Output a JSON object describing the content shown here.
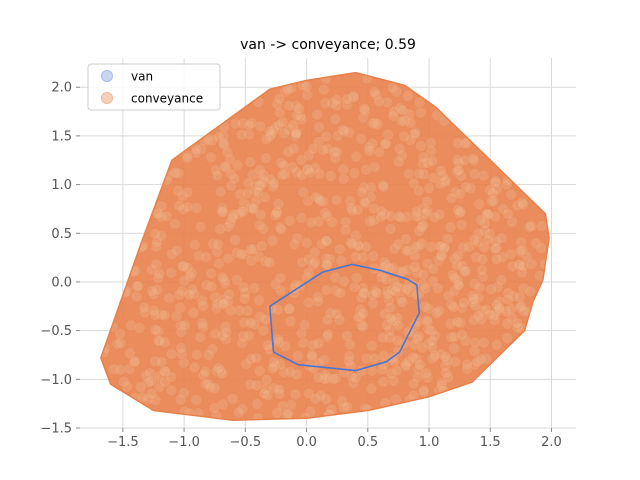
{
  "chart_data": {
    "type": "scatter",
    "title": "van -> conveyance; 0.59",
    "xlabel": "",
    "ylabel": "",
    "xlim": [
      -1.85,
      2.2
    ],
    "ylim": [
      -1.5,
      2.3
    ],
    "grid": true,
    "legend_position": "top-left",
    "xticks": [
      -1.5,
      -1.0,
      -0.5,
      0.0,
      0.5,
      1.0,
      1.5,
      2.0
    ],
    "yticks": [
      -1.5,
      -1.0,
      -0.5,
      0.0,
      0.5,
      1.0,
      1.5,
      2.0
    ],
    "xtick_labels": [
      "−1.5",
      "−1.0",
      "−0.5",
      "0.0",
      "0.5",
      "1.0",
      "1.5",
      "2.0"
    ],
    "ytick_labels": [
      "−1.5",
      "−1.0",
      "−0.5",
      "0.0",
      "0.5",
      "1.0",
      "1.5",
      "2.0"
    ],
    "series": [
      {
        "name": "van",
        "color": "#4a76d4",
        "hull": [
          [
            -0.3,
            -0.25
          ],
          [
            -0.27,
            -0.72
          ],
          [
            -0.07,
            -0.85
          ],
          [
            0.4,
            -0.91
          ],
          [
            0.65,
            -0.82
          ],
          [
            0.76,
            -0.72
          ],
          [
            0.92,
            -0.32
          ],
          [
            0.9,
            -0.03
          ],
          [
            0.82,
            0.03
          ],
          [
            0.6,
            0.12
          ],
          [
            0.37,
            0.18
          ],
          [
            0.13,
            0.1
          ]
        ]
      },
      {
        "name": "conveyance",
        "color": "#e8804a",
        "hull": [
          [
            -1.68,
            -0.78
          ],
          [
            -1.35,
            0.4
          ],
          [
            -1.1,
            1.25
          ],
          [
            -0.3,
            1.98
          ],
          [
            0.0,
            2.07
          ],
          [
            0.4,
            2.15
          ],
          [
            0.8,
            2.02
          ],
          [
            1.05,
            1.8
          ],
          [
            1.5,
            1.25
          ],
          [
            1.95,
            0.7
          ],
          [
            1.98,
            0.45
          ],
          [
            1.93,
            0.02
          ],
          [
            1.85,
            -0.2
          ],
          [
            1.78,
            -0.5
          ],
          [
            1.35,
            -1.03
          ],
          [
            1.0,
            -1.18
          ],
          [
            0.5,
            -1.32
          ],
          [
            0.0,
            -1.4
          ],
          [
            -0.6,
            -1.42
          ],
          [
            -1.25,
            -1.32
          ],
          [
            -1.6,
            -1.05
          ]
        ]
      }
    ]
  }
}
